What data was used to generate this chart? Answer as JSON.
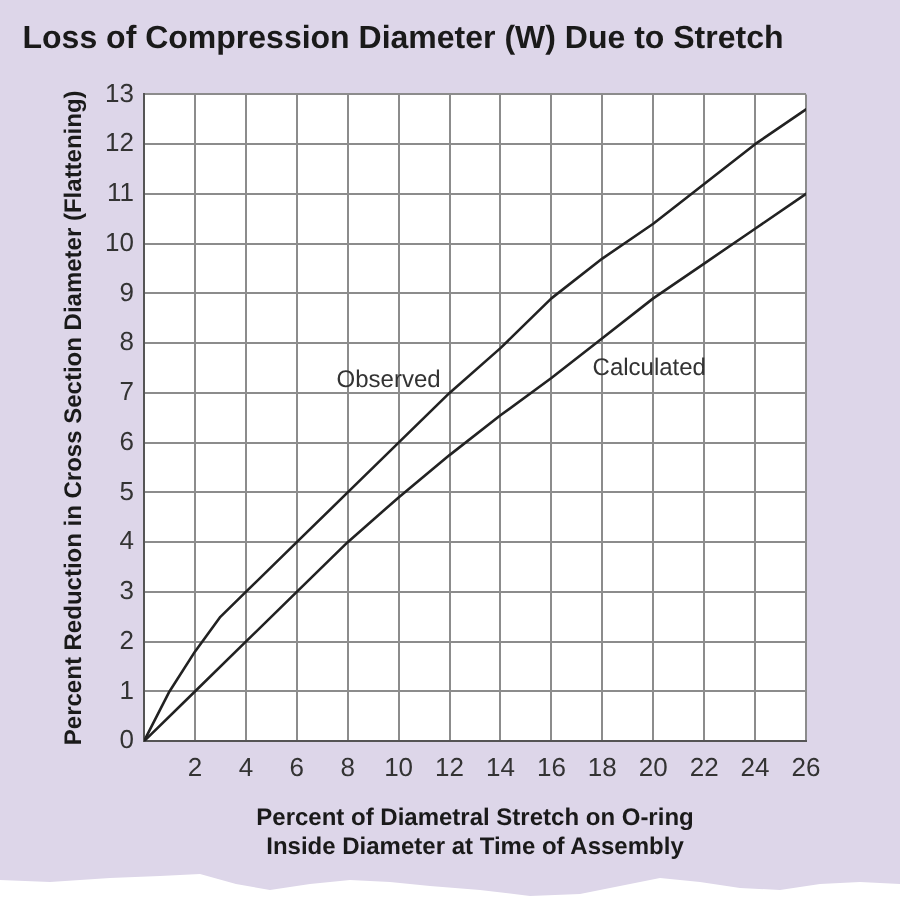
{
  "chart_data": {
    "type": "line",
    "title": "Loss of Compression Diameter (W) Due to Stretch",
    "xlabel": "Percent of Diametral Stretch on O-ring Inside Diameter at Time of Assembly",
    "ylabel": "Percent Reduction in Cross Section Diameter (Flattening)",
    "series": [
      {
        "name": "Observed",
        "color": "#222222",
        "x": [
          0,
          1,
          2,
          3,
          4,
          6,
          8,
          10,
          12,
          14,
          16,
          18,
          20,
          22,
          24,
          26
        ],
        "values": [
          0,
          1.0,
          1.8,
          2.5,
          3.0,
          4.0,
          5.0,
          6.0,
          7.0,
          7.9,
          8.9,
          9.7,
          10.4,
          11.2,
          12.0,
          12.7
        ]
      },
      {
        "name": "Calculated",
        "color": "#222222",
        "x": [
          0,
          2,
          4,
          6,
          8,
          10,
          12,
          14,
          16,
          18,
          20,
          22,
          24,
          26
        ],
        "values": [
          0,
          1.0,
          2.0,
          3.0,
          4.0,
          4.9,
          5.75,
          6.55,
          7.3,
          8.1,
          8.9,
          9.6,
          10.3,
          11.0
        ]
      }
    ],
    "xlim": [
      0,
      26
    ],
    "ylim": [
      0,
      13
    ],
    "xticks": [
      {
        "value": 0,
        "label": null
      },
      2,
      4,
      6,
      8,
      10,
      12,
      14,
      16,
      18,
      20,
      22,
      24,
      26
    ],
    "yticks": [
      0,
      1,
      2,
      3,
      4,
      5,
      6,
      7,
      8,
      9,
      10,
      11,
      12,
      13
    ],
    "grid": true,
    "marker": "none",
    "line_style": "solid"
  }
}
